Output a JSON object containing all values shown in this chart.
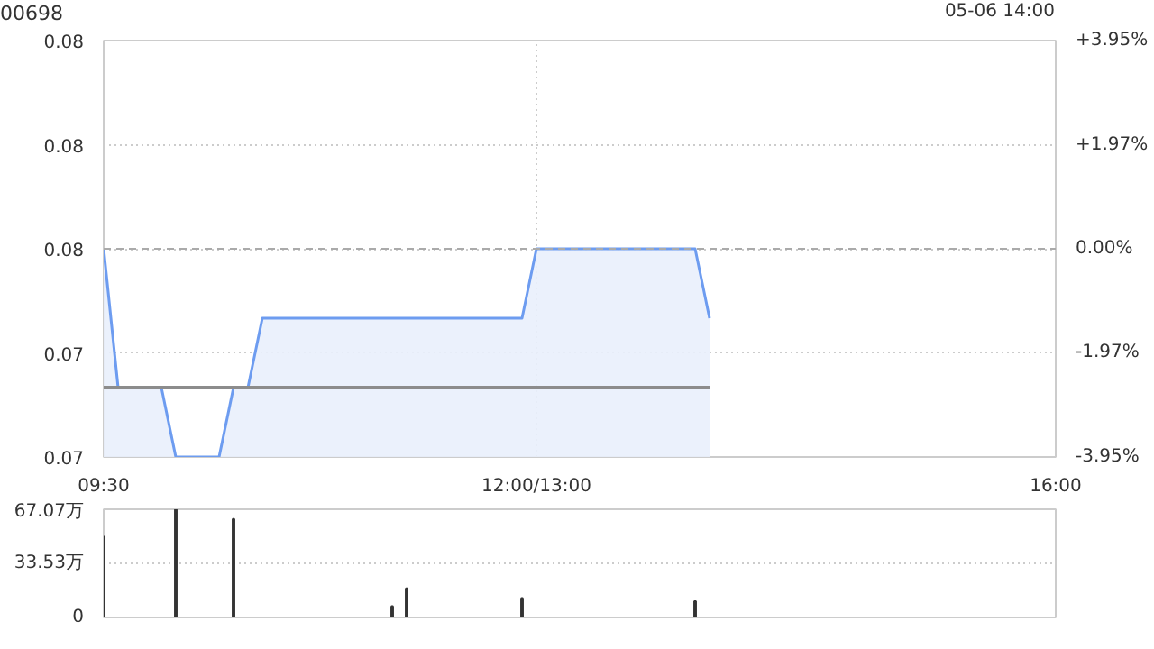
{
  "chart_data": [
    {
      "type": "line",
      "title": "00698",
      "annotations": [
        "05-06 14:00"
      ],
      "categories": [
        "09:30",
        null,
        null,
        null,
        null,
        null,
        null,
        null,
        null,
        null,
        null,
        null,
        null,
        null,
        null,
        null,
        null,
        null,
        null,
        null,
        null,
        null,
        null,
        null,
        null,
        null,
        null,
        null,
        null,
        null,
        "12:00/13:00",
        null,
        null,
        null,
        null,
        null,
        null,
        null,
        null,
        null,
        null,
        null,
        null,
        null,
        null,
        null,
        null,
        null,
        null,
        null,
        null,
        null,
        null,
        null,
        null,
        null,
        null,
        null,
        null,
        null,
        null,
        null,
        null,
        null,
        null,
        null,
        "16:00"
      ],
      "ylim": [
        0.073,
        0.079
      ],
      "yticks": [
        {
          "value": 0.073,
          "label": "0.07"
        },
        {
          "value": 0.0745,
          "label": "0.07"
        },
        {
          "value": 0.076,
          "label": "0.08"
        },
        {
          "value": 0.0775,
          "label": "0.08"
        },
        {
          "value": 0.079,
          "label": "0.08"
        }
      ],
      "y2lim": [
        -3.95,
        3.95
      ],
      "y2ticks": [
        {
          "value": -3.95,
          "label": "-3.95%"
        },
        {
          "value": -1.97,
          "label": "-1.97%"
        },
        {
          "value": 0,
          "label": "0.00%"
        },
        {
          "value": 1.97,
          "label": "+1.97%"
        },
        {
          "value": 3.95,
          "label": "+3.95%"
        }
      ],
      "grid": true,
      "ref_lines": [
        {
          "axis": "y",
          "value": 0.076,
          "color": "#aaaaaa",
          "line_style": "dashed"
        }
      ],
      "series": [
        {
          "type": "area",
          "color": "#6d9cf0",
          "values": [
            0.076,
            0.074,
            0.074,
            0.074,
            0.074,
            0.073,
            0.073,
            0.073,
            0.073,
            0.074,
            0.074,
            0.075,
            0.075,
            0.075,
            0.075,
            0.075,
            0.075,
            0.075,
            0.075,
            0.075,
            0.075,
            0.075,
            0.075,
            0.075,
            0.075,
            0.075,
            0.075,
            0.075,
            0.075,
            0.075,
            0.076,
            0.076,
            0.076,
            0.076,
            0.076,
            0.076,
            0.076,
            0.076,
            0.076,
            0.076,
            0.076,
            0.076,
            0.075,
            null,
            null,
            null,
            null,
            null,
            null,
            null,
            null,
            null,
            null,
            null,
            null,
            null,
            null,
            null,
            null,
            null,
            null,
            null,
            null,
            null,
            null,
            null,
            null
          ]
        },
        {
          "type": "line",
          "color": "#8c8c8c",
          "values": [
            0.074,
            0.074,
            0.074,
            0.074,
            0.074,
            0.074,
            0.074,
            0.074,
            0.074,
            0.074,
            0.074,
            0.074,
            0.074,
            0.074,
            0.074,
            0.074,
            0.074,
            0.074,
            0.074,
            0.074,
            0.074,
            0.074,
            0.074,
            0.074,
            0.074,
            0.074,
            0.074,
            0.074,
            0.074,
            0.074,
            0.074,
            0.074,
            0.074,
            0.074,
            0.074,
            0.074,
            0.074,
            0.074,
            0.074,
            0.074,
            0.074,
            0.074,
            0.074,
            null,
            null,
            null,
            null,
            null,
            null,
            null,
            null,
            null,
            null,
            null,
            null,
            null,
            null,
            null,
            null,
            null,
            null,
            null,
            null,
            null,
            null,
            null,
            null
          ]
        }
      ]
    },
    {
      "type": "bar",
      "categories": [
        null,
        null,
        null,
        null,
        null,
        null,
        null,
        null,
        null,
        null,
        null,
        null,
        null,
        null,
        null,
        null,
        null,
        null,
        null,
        null,
        null,
        null,
        null,
        null,
        null,
        null,
        null,
        null,
        null,
        null,
        null,
        null,
        null,
        null,
        null,
        null,
        null,
        null,
        null,
        null,
        null,
        null,
        null,
        null,
        null,
        null,
        null,
        null,
        null,
        null,
        null,
        null,
        null,
        null,
        null,
        null,
        null,
        null,
        null,
        null,
        null,
        null,
        null,
        null,
        null,
        null,
        null
      ],
      "ylim": [
        0,
        67.07
      ],
      "yticks": [
        0,
        {
          "value": 33.53,
          "label": "33.53万"
        },
        {
          "value": 67.07,
          "label": "67.07万"
        }
      ],
      "grid": true,
      "tick_labels": "y",
      "color": "#333333",
      "values": [
        50,
        null,
        null,
        null,
        null,
        67,
        null,
        null,
        null,
        61,
        null,
        null,
        null,
        null,
        null,
        null,
        null,
        null,
        null,
        null,
        7,
        18,
        null,
        null,
        null,
        null,
        null,
        null,
        null,
        12,
        null,
        null,
        null,
        null,
        null,
        null,
        null,
        null,
        null,
        null,
        null,
        10,
        null,
        null,
        null,
        null,
        null,
        null,
        null,
        null,
        null,
        null,
        null,
        null,
        null,
        null,
        null,
        null,
        null,
        null,
        null,
        null,
        null,
        null,
        null,
        null,
        null
      ]
    }
  ]
}
